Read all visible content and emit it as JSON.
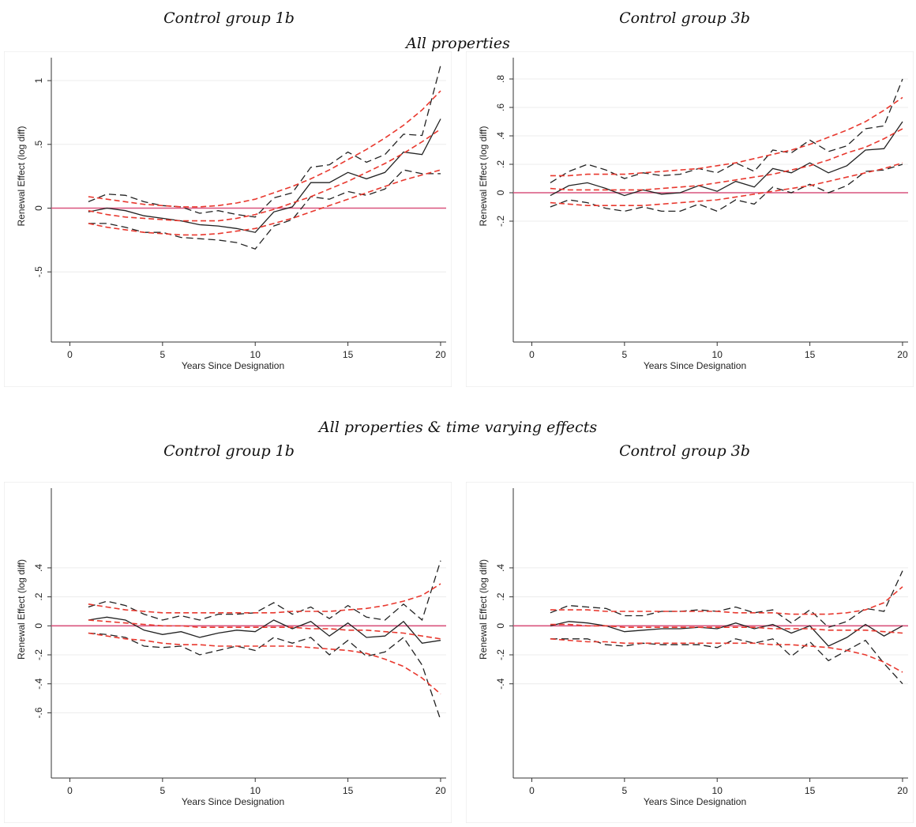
{
  "headers": {
    "top_left": "Control group 1b",
    "top_right": "Control group 3b",
    "top_section": "All properties",
    "bottom_section": "All properties & time varying effects",
    "bottom_left": "Control group 1b",
    "bottom_right": "Control group 3b"
  },
  "chart_data": [
    {
      "type": "line",
      "panel": "All properties - Control group 1b",
      "xlabel": "Years Since Designation",
      "ylabel": "Renewal Effect (log diff)",
      "xlim": [
        -1,
        20.3
      ],
      "ylim": [
        -1.05,
        1.18
      ],
      "xticks": [
        0,
        5,
        10,
        15,
        20
      ],
      "yticks": [
        -0.5,
        0,
        0.5,
        1
      ],
      "ytick_labels": [
        "-.5",
        "0",
        ".5",
        "1"
      ],
      "grid": true,
      "x": [
        1,
        2,
        3,
        4,
        5,
        6,
        7,
        8,
        9,
        10,
        11,
        12,
        13,
        14,
        15,
        16,
        17,
        18,
        19,
        20
      ],
      "series": [
        {
          "role": "estimate",
          "style": "solid",
          "color": "#222222",
          "values": [
            -0.03,
            0.0,
            -0.02,
            -0.06,
            -0.08,
            -0.1,
            -0.13,
            -0.14,
            -0.16,
            -0.19,
            -0.03,
            0.01,
            0.2,
            0.2,
            0.28,
            0.23,
            0.28,
            0.44,
            0.42,
            0.7
          ]
        },
        {
          "role": "upper_ci",
          "style": "dashed",
          "color": "#222222",
          "values": [
            0.05,
            0.11,
            0.1,
            0.05,
            0.02,
            0.01,
            -0.04,
            -0.02,
            -0.05,
            -0.07,
            0.08,
            0.12,
            0.32,
            0.34,
            0.44,
            0.36,
            0.42,
            0.58,
            0.57,
            1.12
          ]
        },
        {
          "role": "lower_ci",
          "style": "dashed",
          "color": "#222222",
          "values": [
            -0.12,
            -0.12,
            -0.15,
            -0.19,
            -0.19,
            -0.23,
            -0.24,
            -0.25,
            -0.27,
            -0.32,
            -0.14,
            -0.09,
            0.09,
            0.07,
            0.13,
            0.1,
            0.15,
            0.3,
            0.27,
            0.27
          ]
        },
        {
          "role": "fit",
          "style": "dashed",
          "color": "#e8382e",
          "values": [
            -0.02,
            -0.05,
            -0.07,
            -0.08,
            -0.09,
            -0.1,
            -0.1,
            -0.1,
            -0.08,
            -0.05,
            -0.01,
            0.04,
            0.09,
            0.15,
            0.21,
            0.28,
            0.35,
            0.43,
            0.52,
            0.62
          ]
        },
        {
          "role": "fit_upper",
          "style": "dashed",
          "color": "#e8382e",
          "values": [
            0.09,
            0.07,
            0.05,
            0.03,
            0.02,
            0.01,
            0.01,
            0.02,
            0.04,
            0.07,
            0.12,
            0.17,
            0.23,
            0.3,
            0.38,
            0.46,
            0.55,
            0.65,
            0.77,
            0.92
          ]
        },
        {
          "role": "fit_lower",
          "style": "dashed",
          "color": "#e8382e",
          "values": [
            -0.12,
            -0.15,
            -0.17,
            -0.19,
            -0.2,
            -0.21,
            -0.21,
            -0.2,
            -0.18,
            -0.16,
            -0.12,
            -0.08,
            -0.03,
            0.02,
            0.07,
            0.12,
            0.17,
            0.22,
            0.26,
            0.3
          ]
        }
      ],
      "reference_line": {
        "y": 0,
        "color": "#d9547e"
      }
    },
    {
      "type": "line",
      "panel": "All properties - Control group 3b",
      "xlabel": "Years Since Designation",
      "ylabel": "Renewal Effect (log diff)",
      "xlim": [
        -1,
        20.3
      ],
      "ylim": [
        -1.05,
        0.95
      ],
      "xticks": [
        0,
        5,
        10,
        15,
        20
      ],
      "yticks": [
        -0.2,
        0,
        0.2,
        0.4,
        0.6,
        0.8
      ],
      "ytick_labels": [
        "-.2",
        "0",
        ".2",
        ".4",
        ".6",
        ".8"
      ],
      "grid": true,
      "x": [
        1,
        2,
        3,
        4,
        5,
        6,
        7,
        8,
        9,
        10,
        11,
        12,
        13,
        14,
        15,
        16,
        17,
        18,
        19,
        20
      ],
      "series": [
        {
          "role": "estimate",
          "style": "solid",
          "color": "#222222",
          "values": [
            -0.02,
            0.05,
            0.07,
            0.03,
            -0.02,
            0.02,
            -0.01,
            0.0,
            0.05,
            0.01,
            0.08,
            0.04,
            0.17,
            0.14,
            0.21,
            0.14,
            0.19,
            0.3,
            0.31,
            0.5
          ]
        },
        {
          "role": "upper_ci",
          "style": "dashed",
          "color": "#222222",
          "values": [
            0.07,
            0.15,
            0.2,
            0.16,
            0.1,
            0.14,
            0.12,
            0.13,
            0.17,
            0.14,
            0.21,
            0.15,
            0.3,
            0.28,
            0.37,
            0.29,
            0.33,
            0.45,
            0.47,
            0.8
          ]
        },
        {
          "role": "lower_ci",
          "style": "dashed",
          "color": "#222222",
          "values": [
            -0.1,
            -0.05,
            -0.07,
            -0.11,
            -0.13,
            -0.1,
            -0.13,
            -0.13,
            -0.08,
            -0.13,
            -0.05,
            -0.08,
            0.04,
            0.0,
            0.06,
            0.0,
            0.05,
            0.15,
            0.16,
            0.2
          ]
        },
        {
          "role": "fit",
          "style": "dashed",
          "color": "#e8382e",
          "values": [
            0.03,
            0.02,
            0.02,
            0.02,
            0.02,
            0.02,
            0.03,
            0.04,
            0.05,
            0.07,
            0.09,
            0.11,
            0.13,
            0.16,
            0.19,
            0.23,
            0.28,
            0.32,
            0.38,
            0.45
          ]
        },
        {
          "role": "fit_upper",
          "style": "dashed",
          "color": "#e8382e",
          "values": [
            0.12,
            0.12,
            0.13,
            0.13,
            0.13,
            0.14,
            0.15,
            0.16,
            0.17,
            0.19,
            0.21,
            0.24,
            0.27,
            0.3,
            0.34,
            0.39,
            0.44,
            0.5,
            0.58,
            0.67
          ]
        },
        {
          "role": "fit_lower",
          "style": "dashed",
          "color": "#e8382e",
          "values": [
            -0.07,
            -0.08,
            -0.09,
            -0.09,
            -0.09,
            -0.09,
            -0.08,
            -0.07,
            -0.06,
            -0.05,
            -0.03,
            -0.01,
            0.01,
            0.03,
            0.05,
            0.08,
            0.11,
            0.14,
            0.17,
            0.21
          ]
        }
      ],
      "reference_line": {
        "y": 0,
        "color": "#d9547e"
      }
    },
    {
      "type": "line",
      "panel": "All properties & time varying effects - Control group 1b",
      "xlabel": "Years Since Designation",
      "ylabel": "Renewal Effect (log diff)",
      "xlim": [
        -1,
        20.3
      ],
      "ylim": [
        -1.05,
        0.95
      ],
      "xticks": [
        0,
        5,
        10,
        15,
        20
      ],
      "yticks": [
        -0.6,
        -0.4,
        -0.2,
        0,
        0.2,
        0.4
      ],
      "ytick_labels": [
        "-.6",
        "-.4",
        "-.2",
        "0",
        ".2",
        ".4"
      ],
      "grid": true,
      "x": [
        1,
        2,
        3,
        4,
        5,
        6,
        7,
        8,
        9,
        10,
        11,
        12,
        13,
        14,
        15,
        16,
        17,
        18,
        19,
        20
      ],
      "series": [
        {
          "role": "estimate",
          "style": "solid",
          "color": "#222222",
          "values": [
            0.04,
            0.06,
            0.04,
            -0.03,
            -0.06,
            -0.04,
            -0.08,
            -0.05,
            -0.03,
            -0.04,
            0.04,
            -0.02,
            0.03,
            -0.07,
            0.02,
            -0.08,
            -0.07,
            0.03,
            -0.12,
            -0.1
          ]
        },
        {
          "role": "upper_ci",
          "style": "dashed",
          "color": "#222222",
          "values": [
            0.13,
            0.17,
            0.14,
            0.08,
            0.04,
            0.07,
            0.04,
            0.08,
            0.08,
            0.09,
            0.16,
            0.08,
            0.13,
            0.05,
            0.14,
            0.06,
            0.04,
            0.15,
            0.04,
            0.45
          ]
        },
        {
          "role": "lower_ci",
          "style": "dashed",
          "color": "#222222",
          "values": [
            -0.05,
            -0.06,
            -0.08,
            -0.14,
            -0.15,
            -0.14,
            -0.2,
            -0.17,
            -0.14,
            -0.17,
            -0.08,
            -0.12,
            -0.08,
            -0.2,
            -0.1,
            -0.21,
            -0.18,
            -0.08,
            -0.27,
            -0.65
          ]
        },
        {
          "role": "fit",
          "style": "dashed",
          "color": "#e8382e",
          "values": [
            0.04,
            0.03,
            0.02,
            0.01,
            0.0,
            0.0,
            -0.01,
            -0.01,
            -0.01,
            -0.01,
            -0.01,
            -0.01,
            -0.02,
            -0.02,
            -0.03,
            -0.03,
            -0.04,
            -0.05,
            -0.07,
            -0.09
          ]
        },
        {
          "role": "fit_upper",
          "style": "dashed",
          "color": "#e8382e",
          "values": [
            0.15,
            0.13,
            0.11,
            0.1,
            0.09,
            0.09,
            0.09,
            0.09,
            0.09,
            0.09,
            0.09,
            0.1,
            0.1,
            0.1,
            0.11,
            0.12,
            0.14,
            0.17,
            0.21,
            0.29
          ]
        },
        {
          "role": "fit_lower",
          "style": "dashed",
          "color": "#e8382e",
          "values": [
            -0.05,
            -0.07,
            -0.09,
            -0.1,
            -0.12,
            -0.13,
            -0.13,
            -0.14,
            -0.14,
            -0.14,
            -0.14,
            -0.14,
            -0.15,
            -0.16,
            -0.17,
            -0.19,
            -0.23,
            -0.28,
            -0.36,
            -0.47
          ]
        }
      ],
      "reference_line": {
        "y": 0,
        "color": "#d9547e"
      }
    },
    {
      "type": "line",
      "panel": "All properties & time varying effects - Control group 3b",
      "xlabel": "Years Since Designation",
      "ylabel": "Renewal Effect (log diff)",
      "xlim": [
        -1,
        20.3
      ],
      "ylim": [
        -1.05,
        0.95
      ],
      "xticks": [
        0,
        5,
        10,
        15,
        20
      ],
      "yticks": [
        -0.4,
        -0.2,
        0,
        0.2,
        0.4
      ],
      "ytick_labels": [
        "-.4",
        "-.2",
        "0",
        ".2",
        ".4"
      ],
      "grid": true,
      "x": [
        1,
        2,
        3,
        4,
        5,
        6,
        7,
        8,
        9,
        10,
        11,
        12,
        13,
        14,
        15,
        16,
        17,
        18,
        19,
        20
      ],
      "series": [
        {
          "role": "estimate",
          "style": "solid",
          "color": "#222222",
          "values": [
            0.0,
            0.03,
            0.02,
            0.0,
            -0.04,
            -0.03,
            -0.02,
            -0.02,
            -0.01,
            -0.02,
            0.02,
            -0.02,
            0.01,
            -0.05,
            0.0,
            -0.14,
            -0.08,
            0.01,
            -0.07,
            0.0
          ]
        },
        {
          "role": "upper_ci",
          "style": "dashed",
          "color": "#222222",
          "values": [
            0.09,
            0.14,
            0.13,
            0.12,
            0.07,
            0.07,
            0.1,
            0.1,
            0.11,
            0.1,
            0.13,
            0.09,
            0.11,
            0.02,
            0.11,
            -0.01,
            0.03,
            0.12,
            0.1,
            0.38
          ]
        },
        {
          "role": "lower_ci",
          "style": "dashed",
          "color": "#222222",
          "values": [
            -0.09,
            -0.09,
            -0.09,
            -0.13,
            -0.14,
            -0.12,
            -0.13,
            -0.13,
            -0.13,
            -0.15,
            -0.09,
            -0.12,
            -0.09,
            -0.21,
            -0.11,
            -0.24,
            -0.17,
            -0.1,
            -0.26,
            -0.4
          ]
        },
        {
          "role": "fit",
          "style": "dashed",
          "color": "#e8382e",
          "values": [
            0.01,
            0.01,
            0.0,
            0.0,
            -0.01,
            -0.01,
            -0.01,
            -0.01,
            -0.01,
            -0.01,
            -0.01,
            -0.01,
            -0.02,
            -0.02,
            -0.02,
            -0.03,
            -0.03,
            -0.03,
            -0.04,
            -0.05
          ]
        },
        {
          "role": "fit_upper",
          "style": "dashed",
          "color": "#e8382e",
          "values": [
            0.11,
            0.11,
            0.11,
            0.1,
            0.1,
            0.1,
            0.1,
            0.1,
            0.1,
            0.1,
            0.09,
            0.09,
            0.09,
            0.08,
            0.08,
            0.08,
            0.09,
            0.11,
            0.16,
            0.27
          ]
        },
        {
          "role": "fit_lower",
          "style": "dashed",
          "color": "#e8382e",
          "values": [
            -0.09,
            -0.1,
            -0.11,
            -0.11,
            -0.12,
            -0.12,
            -0.12,
            -0.12,
            -0.12,
            -0.12,
            -0.12,
            -0.12,
            -0.13,
            -0.13,
            -0.14,
            -0.15,
            -0.17,
            -0.2,
            -0.25,
            -0.32
          ]
        }
      ],
      "reference_line": {
        "y": 0,
        "color": "#d9547e"
      }
    }
  ]
}
